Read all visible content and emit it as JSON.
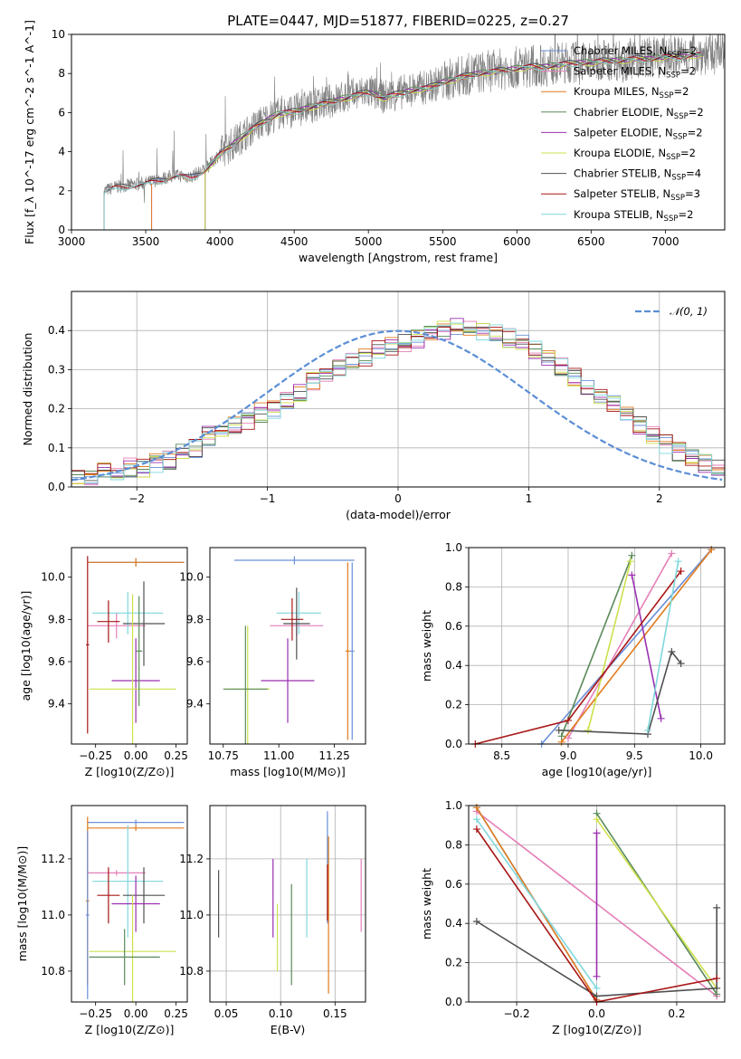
{
  "colors": {
    "chabrier_miles": "#6a8fd8",
    "salpeter_miles": "#e57fb8",
    "kroupa_miles": "#e07b1c",
    "chabrier_elodie": "#5a8a5a",
    "salpeter_elodie": "#9a2fb0",
    "kroupa_elodie": "#cde04b",
    "chabrier_stelib": "#505050",
    "salpeter_stelib": "#a81616",
    "kroupa_stelib": "#7fd7dc",
    "data": "#7f7f7f",
    "normal": "#5b8ed6"
  },
  "chart_data": [
    {
      "id": "spectrum",
      "type": "line",
      "title": "PLATE=0447, MJD=51877, FIBERID=0225, z=0.27",
      "xlabel": "wavelength [Angstrom, rest frame]",
      "ylabel": "Flux [f_λ 10^-17 erg cm^-2 s^-1 A^-1]",
      "xlim": [
        3000,
        7400
      ],
      "ylim": [
        0,
        10
      ],
      "xticks": [
        3000,
        3500,
        4000,
        4500,
        5000,
        5500,
        6000,
        6500,
        7000
      ],
      "yticks": [
        0,
        2,
        4,
        6,
        8,
        10
      ],
      "grid": false,
      "legend_position": "top-right",
      "data_series": {
        "x": [
          3220,
          3300,
          3400,
          3500,
          3600,
          3700,
          3800,
          3900,
          4000,
          4100,
          4200,
          4300,
          4400,
          4500,
          4600,
          4700,
          4800,
          4900,
          5000,
          5100,
          5200,
          5300,
          5400,
          5500,
          5600,
          5700,
          5800,
          5900,
          6000,
          6100,
          6200,
          6300,
          6400,
          6500,
          6600,
          6700,
          6800,
          6900,
          7000,
          7100,
          7200
        ],
        "y": [
          2.0,
          2.2,
          2.3,
          2.4,
          2.6,
          2.8,
          2.7,
          3.1,
          3.9,
          4.5,
          5.1,
          5.6,
          6.0,
          6.1,
          6.3,
          6.5,
          6.7,
          6.9,
          7.1,
          6.8,
          7.0,
          7.2,
          7.3,
          7.6,
          7.8,
          8.0,
          8.1,
          8.2,
          8.3,
          8.4,
          8.4,
          8.5,
          8.6,
          8.6,
          8.7,
          8.7,
          8.8,
          8.8,
          8.9,
          8.9,
          9.0
        ]
      },
      "series": [
        {
          "name": "Chabrier MILES, N_SSP=2",
          "label_main": "Chabrier MILES, N",
          "label_sub": "SSP",
          "label_tail": "=2",
          "color_key": "chabrier_miles",
          "start": 3540
        },
        {
          "name": "Salpeter MILES, N_SSP=2",
          "label_main": "Salpeter MILES, N",
          "label_sub": "SSP",
          "label_tail": "=2",
          "color_key": "salpeter_miles",
          "start": 3540
        },
        {
          "name": "Kroupa MILES, N_SSP=2",
          "label_main": "Kroupa MILES, N",
          "label_sub": "SSP",
          "label_tail": "=2",
          "color_key": "kroupa_miles",
          "start": 3540
        },
        {
          "name": "Chabrier ELODIE, N_SSP=2",
          "label_main": "Chabrier ELODIE, N",
          "label_sub": "SSP",
          "label_tail": "=2",
          "color_key": "chabrier_elodie",
          "start": 3900
        },
        {
          "name": "Salpeter ELODIE, N_SSP=2",
          "label_main": "Salpeter ELODIE, N",
          "label_sub": "SSP",
          "label_tail": "=2",
          "color_key": "salpeter_elodie",
          "start": 3900
        },
        {
          "name": "Kroupa ELODIE, N_SSP=2",
          "label_main": "Kroupa ELODIE, N",
          "label_sub": "SSP",
          "label_tail": "=2",
          "color_key": "kroupa_elodie",
          "start": 3900
        },
        {
          "name": "Chabrier STELIB, N_SSP=4",
          "label_main": "Chabrier STELIB, N",
          "label_sub": "SSP",
          "label_tail": "=4",
          "color_key": "chabrier_stelib",
          "start": 3220
        },
        {
          "name": "Salpeter STELIB, N_SSP=3",
          "label_main": "Salpeter STELIB, N",
          "label_sub": "SSP",
          "label_tail": "=3",
          "color_key": "salpeter_stelib",
          "start": 3220
        },
        {
          "name": "Kroupa STELIB, N_SSP=2",
          "label_main": "Kroupa STELIB, N",
          "label_sub": "SSP",
          "label_tail": "=2",
          "color_key": "kroupa_stelib",
          "start": 3220
        }
      ]
    },
    {
      "id": "residuals",
      "type": "histogram",
      "xlabel": "(data-model)/error",
      "ylabel": "Normed distribution",
      "xlim": [
        -2.5,
        2.5
      ],
      "ylim": [
        0,
        0.5
      ],
      "xticks": [
        -2,
        -1,
        0,
        1,
        2
      ],
      "yticks": [
        0.0,
        0.1,
        0.2,
        0.3,
        0.4
      ],
      "grid": true,
      "legend_position": "top-right",
      "legend": [
        "𝒩(0, 1)"
      ],
      "bin_width": 0.1,
      "bin_start": -2.5,
      "reference_curve": {
        "name": "𝒩(0, 1)",
        "mean": 0,
        "sigma": 1
      },
      "hist_values": [
        0.02,
        0.03,
        0.05,
        0.04,
        0.05,
        0.05,
        0.06,
        0.07,
        0.09,
        0.1,
        0.13,
        0.14,
        0.16,
        0.17,
        0.19,
        0.2,
        0.22,
        0.24,
        0.27,
        0.29,
        0.3,
        0.32,
        0.33,
        0.35,
        0.36,
        0.37,
        0.38,
        0.39,
        0.4,
        0.41,
        0.4,
        0.4,
        0.39,
        0.38,
        0.37,
        0.35,
        0.33,
        0.31,
        0.28,
        0.26,
        0.23,
        0.21,
        0.18,
        0.16,
        0.13,
        0.11,
        0.09,
        0.07,
        0.06,
        0.05
      ]
    },
    {
      "id": "age_vs_Z",
      "type": "errorbar",
      "xlabel": "Z [log10(Z/Z⊙)]",
      "ylabel": "age [log10(age/yr)]",
      "xlim": [
        -0.4,
        0.32
      ],
      "ylim": [
        9.21,
        10.14
      ],
      "xticks": [
        -0.25,
        0.0,
        0.25
      ],
      "xtick_labels": [
        "−0.25",
        "0.00",
        "0.25"
      ],
      "yticks": [
        9.4,
        9.6,
        9.8,
        10.0
      ],
      "grid": false,
      "points": [
        {
          "color_key": "chabrier_miles",
          "x": 0.0,
          "xerr": 0.3,
          "y": 10.07,
          "yerr": 0.02
        },
        {
          "color_key": "kroupa_miles",
          "x": 0.0,
          "xerr": 0.3,
          "y": 10.07,
          "yerr": 0.02
        },
        {
          "color_key": "salpeter_miles",
          "x": -0.12,
          "xerr": 0.18,
          "y": 9.77,
          "yerr": 0.06
        },
        {
          "color_key": "kroupa_stelib",
          "x": -0.05,
          "xerr": 0.22,
          "y": 9.83,
          "yerr": 0.1
        },
        {
          "color_key": "salpeter_stelib",
          "x": -0.17,
          "xerr": 0.07,
          "y": 9.79,
          "yerr": 0.1
        },
        {
          "color_key": "chabrier_stelib",
          "x": 0.05,
          "xerr": 0.13,
          "y": 9.78,
          "yerr": 0.2
        },
        {
          "color_key": "salpeter_elodie",
          "x": 0.0,
          "xerr": 0.15,
          "y": 9.51,
          "yerr": 0.2
        },
        {
          "color_key": "kroupa_elodie",
          "x": -0.02,
          "xerr": 0.27,
          "y": 9.47,
          "yerr": 0.45
        },
        {
          "color_key": "chabrier_elodie",
          "x": 0.02,
          "xerr": 0.02,
          "y": 9.65,
          "yerr": 0.26
        },
        {
          "color_key": "salpeter_stelib",
          "x": -0.3,
          "xerr": 0.01,
          "y": 9.68,
          "yerr": 0.42
        }
      ]
    },
    {
      "id": "age_vs_mass",
      "type": "errorbar",
      "xlabel": "mass [log10(M/M⊙)]",
      "xlim": [
        10.69,
        11.39
      ],
      "ylim": [
        9.21,
        10.14
      ],
      "xticks": [
        10.75,
        11.0,
        11.25
      ],
      "xtick_labels": [
        "10.75",
        "11.00",
        "11.25"
      ],
      "yticks": [
        9.4,
        9.6,
        9.8,
        10.0
      ],
      "grid": false,
      "points": [
        {
          "color_key": "chabrier_miles",
          "x": 11.07,
          "xerr": 0.27,
          "y": 10.08,
          "yerr": 0.02
        },
        {
          "color_key": "chabrier_miles",
          "x": 11.33,
          "xerr": 0.01,
          "y": 9.65,
          "yerr": 0.42
        },
        {
          "color_key": "kroupa_miles",
          "x": 11.31,
          "xerr": 0.01,
          "y": 9.65,
          "yerr": 0.42
        },
        {
          "color_key": "kroupa_stelib",
          "x": 11.09,
          "xerr": 0.1,
          "y": 9.83,
          "yerr": 0.1
        },
        {
          "color_key": "salpeter_miles",
          "x": 11.08,
          "xerr": 0.12,
          "y": 9.77,
          "yerr": 0.05
        },
        {
          "color_key": "chabrier_stelib",
          "x": 11.08,
          "xerr": 0.06,
          "y": 9.78,
          "yerr": 0.17
        },
        {
          "color_key": "salpeter_stelib",
          "x": 11.06,
          "xerr": 0.05,
          "y": 9.8,
          "yerr": 0.1
        },
        {
          "color_key": "salpeter_elodie",
          "x": 11.04,
          "xerr": 0.12,
          "y": 9.51,
          "yerr": 0.2
        },
        {
          "color_key": "kroupa_elodie",
          "x": 10.86,
          "xerr": 0.1,
          "y": 9.47,
          "yerr": 0.3
        },
        {
          "color_key": "chabrier_elodie",
          "x": 10.85,
          "xerr": 0.1,
          "y": 9.47,
          "yerr": 0.3
        }
      ]
    },
    {
      "id": "massweight_vs_age",
      "type": "line",
      "xlabel": "age [log10(age/yr)]",
      "ylabel": "mass weight",
      "xlim": [
        8.25,
        10.18
      ],
      "ylim": [
        0,
        1
      ],
      "xticks": [
        8.5,
        9.0,
        9.5,
        10.0
      ],
      "yticks": [
        0.0,
        0.2,
        0.4,
        0.6,
        0.8,
        1.0
      ],
      "grid": true,
      "series": [
        {
          "color_key": "chabrier_miles",
          "x": [
            8.8,
            10.08
          ],
          "y": [
            0.0,
            0.99
          ]
        },
        {
          "color_key": "salpeter_miles",
          "x": [
            9.0,
            9.78
          ],
          "y": [
            0.03,
            0.97
          ]
        },
        {
          "color_key": "kroupa_miles",
          "x": [
            8.95,
            10.08
          ],
          "y": [
            0.01,
            0.99
          ]
        },
        {
          "color_key": "chabrier_elodie",
          "x": [
            8.95,
            9.48
          ],
          "y": [
            0.04,
            0.96
          ]
        },
        {
          "color_key": "salpeter_elodie",
          "x": [
            9.48,
            9.7
          ],
          "y": [
            0.86,
            0.13
          ]
        },
        {
          "color_key": "kroupa_elodie",
          "x": [
            9.15,
            9.47
          ],
          "y": [
            0.07,
            0.93
          ]
        },
        {
          "color_key": "chabrier_stelib",
          "x": [
            8.93,
            9.6,
            9.78,
            9.85
          ],
          "y": [
            0.07,
            0.05,
            0.47,
            0.41
          ]
        },
        {
          "color_key": "salpeter_stelib",
          "x": [
            8.3,
            9.0,
            9.85
          ],
          "y": [
            0.0,
            0.12,
            0.88
          ]
        },
        {
          "color_key": "kroupa_stelib",
          "x": [
            9.6,
            9.83
          ],
          "y": [
            0.07,
            0.93
          ]
        }
      ]
    },
    {
      "id": "mass_vs_Z",
      "type": "errorbar",
      "xlabel": "Z [log10(Z/Z⊙)]",
      "ylabel": "mass [log10(M/M⊙)]",
      "xlim": [
        -0.4,
        0.32
      ],
      "ylim": [
        10.69,
        11.39
      ],
      "xticks": [
        -0.25,
        0.0,
        0.25
      ],
      "xtick_labels": [
        "−0.25",
        "0.00",
        "0.25"
      ],
      "yticks": [
        10.8,
        11.0,
        11.2
      ],
      "grid": false,
      "points": [
        {
          "color_key": "chabrier_miles",
          "x": 0.0,
          "xerr": 0.3,
          "y": 11.33,
          "yerr": 0.01
        },
        {
          "color_key": "kroupa_miles",
          "x": 0.0,
          "xerr": 0.3,
          "y": 11.31,
          "yerr": 0.01
        },
        {
          "color_key": "salpeter_miles",
          "x": -0.12,
          "xerr": 0.18,
          "y": 11.15,
          "yerr": 0.01
        },
        {
          "color_key": "kroupa_stelib",
          "x": -0.05,
          "xerr": 0.22,
          "y": 11.12,
          "yerr": 0.2
        },
        {
          "color_key": "salpeter_stelib",
          "x": -0.17,
          "xerr": 0.07,
          "y": 11.07,
          "yerr": 0.1
        },
        {
          "color_key": "chabrier_stelib",
          "x": 0.05,
          "xerr": 0.13,
          "y": 11.07,
          "yerr": 0.1
        },
        {
          "color_key": "salpeter_elodie",
          "x": 0.0,
          "xerr": 0.15,
          "y": 11.04,
          "yerr": 0.1
        },
        {
          "color_key": "kroupa_elodie",
          "x": -0.02,
          "xerr": 0.27,
          "y": 10.87,
          "yerr": 0.2
        },
        {
          "color_key": "chabrier_elodie",
          "x": -0.07,
          "xerr": 0.22,
          "y": 10.85,
          "yerr": 0.1
        },
        {
          "color_key": "kroupa_miles",
          "x": -0.3,
          "xerr": 0.01,
          "y": 11.05,
          "yerr": 0.3
        },
        {
          "color_key": "chabrier_miles",
          "x": -0.3,
          "xerr": 0.01,
          "y": 11.0,
          "yerr": 0.3
        }
      ]
    },
    {
      "id": "mass_vs_ebv",
      "type": "errorbar",
      "xlabel": "E(B-V)",
      "xlim": [
        0.035,
        0.178
      ],
      "ylim": [
        10.69,
        11.39
      ],
      "xticks": [
        0.05,
        0.1,
        0.15
      ],
      "xtick_labels": [
        "0.05",
        "0.10",
        "0.15"
      ],
      "yticks": [
        10.8,
        11.0,
        11.2
      ],
      "grid": true,
      "points": [
        {
          "color_key": "chabrier_stelib",
          "x": 0.043,
          "xerr": 0.0,
          "y": 11.04,
          "yerr": 0.12
        },
        {
          "color_key": "salpeter_elodie",
          "x": 0.093,
          "xerr": 0.0,
          "y": 11.06,
          "yerr": 0.14
        },
        {
          "color_key": "kroupa_elodie",
          "x": 0.097,
          "xerr": 0.0,
          "y": 10.92,
          "yerr": 0.12
        },
        {
          "color_key": "chabrier_elodie",
          "x": 0.11,
          "xerr": 0.0,
          "y": 10.93,
          "yerr": 0.18
        },
        {
          "color_key": "kroupa_stelib",
          "x": 0.124,
          "xerr": 0.0,
          "y": 11.06,
          "yerr": 0.14
        },
        {
          "color_key": "chabrier_miles",
          "x": 0.143,
          "xerr": 0.0,
          "y": 11.17,
          "yerr": 0.2
        },
        {
          "color_key": "kroupa_miles",
          "x": 0.144,
          "xerr": 0.0,
          "y": 11.0,
          "yerr": 0.28
        },
        {
          "color_key": "salpeter_stelib",
          "x": 0.143,
          "xerr": 0.0,
          "y": 11.08,
          "yerr": 0.1
        },
        {
          "color_key": "salpeter_miles",
          "x": 0.174,
          "xerr": 0.0,
          "y": 11.07,
          "yerr": 0.13
        }
      ]
    },
    {
      "id": "massweight_vs_Z",
      "type": "line",
      "xlabel": "Z [log10(Z/Z⊙)]",
      "ylabel": "mass weight",
      "xlim": [
        -0.32,
        0.32
      ],
      "ylim": [
        0,
        1
      ],
      "xticks": [
        -0.2,
        0.0,
        0.2
      ],
      "xtick_labels": [
        "−0.2",
        "0.0",
        "0.2"
      ],
      "yticks": [
        0.0,
        0.2,
        0.4,
        0.6,
        0.8,
        1.0
      ],
      "grid": true,
      "series": [
        {
          "color_key": "chabrier_miles",
          "x": [
            -0.3,
            0.0
          ],
          "y": [
            0.99,
            0.01
          ]
        },
        {
          "color_key": "salpeter_miles",
          "x": [
            -0.3,
            0.3
          ],
          "y": [
            0.97,
            0.03
          ]
        },
        {
          "color_key": "kroupa_miles",
          "x": [
            -0.3,
            0.0
          ],
          "y": [
            0.99,
            0.01
          ]
        },
        {
          "color_key": "chabrier_elodie",
          "x": [
            0.0,
            0.3
          ],
          "y": [
            0.96,
            0.04
          ]
        },
        {
          "color_key": "salpeter_elodie",
          "x": [
            0.0,
            0.0
          ],
          "y": [
            0.86,
            0.13
          ]
        },
        {
          "color_key": "kroupa_elodie",
          "x": [
            0.0,
            0.3
          ],
          "y": [
            0.93,
            0.07
          ]
        },
        {
          "color_key": "chabrier_stelib",
          "x": [
            -0.3,
            0.0,
            0.3,
            0.3
          ],
          "y": [
            0.41,
            0.03,
            0.07,
            0.48
          ]
        },
        {
          "color_key": "salpeter_stelib",
          "x": [
            -0.3,
            0.0,
            0.3
          ],
          "y": [
            0.88,
            0.0,
            0.12
          ]
        },
        {
          "color_key": "kroupa_stelib",
          "x": [
            -0.3,
            0.0
          ],
          "y": [
            0.93,
            0.07
          ]
        }
      ]
    }
  ]
}
